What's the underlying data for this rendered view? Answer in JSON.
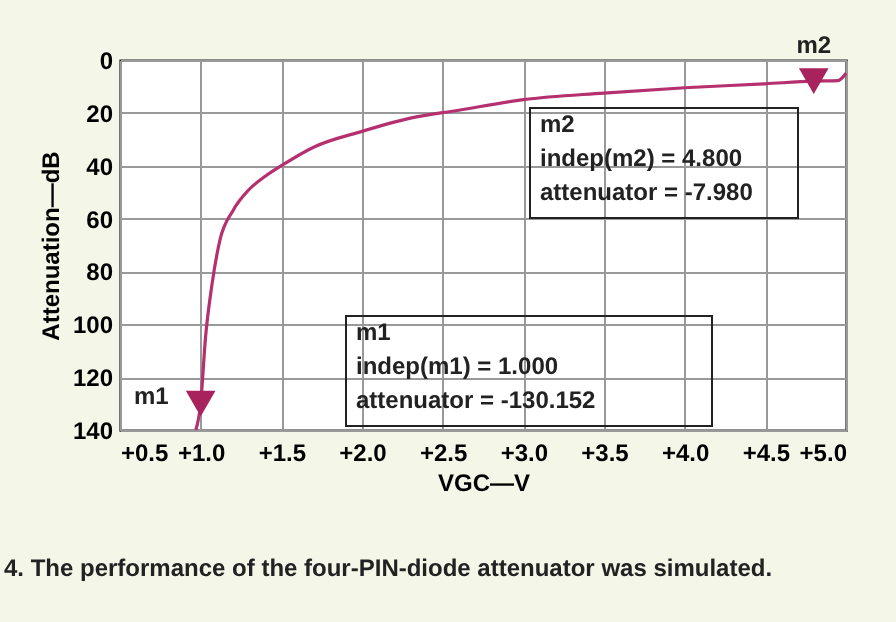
{
  "chart_data": {
    "type": "line",
    "xlabel": "VGC—V",
    "ylabel": "Attenuation—dB",
    "xlim": [
      0.5,
      5.0
    ],
    "ylim": [
      140,
      0
    ],
    "xticks": [
      {
        "value": 0.5,
        "label": "+0.5"
      },
      {
        "value": 1.0,
        "label": "+1.0"
      },
      {
        "value": 1.5,
        "label": "+1.5"
      },
      {
        "value": 2.0,
        "label": "+2.0"
      },
      {
        "value": 2.5,
        "label": "+2.5"
      },
      {
        "value": 3.0,
        "label": "+3.0"
      },
      {
        "value": 3.5,
        "label": "+3.5"
      },
      {
        "value": 4.0,
        "label": "+4.0"
      },
      {
        "value": 4.5,
        "label": "+4.5"
      },
      {
        "value": 5.0,
        "label": "+5.0"
      }
    ],
    "yticks": [
      0,
      20,
      40,
      60,
      80,
      100,
      120,
      140
    ],
    "grid": true,
    "series": [
      {
        "color": "#b4306e",
        "x": [
          0.97,
          1.0,
          1.03,
          1.07,
          1.12,
          1.2,
          1.3,
          1.4,
          1.5,
          1.7,
          2.0,
          2.3,
          2.6,
          3.0,
          3.5,
          4.0,
          4.5,
          4.8,
          4.95,
          5.0
        ],
        "values": [
          140,
          130,
          105,
          85,
          68,
          57,
          49,
          44,
          40,
          33,
          27,
          22,
          19,
          15,
          12.5,
          10.5,
          9,
          8,
          7.8,
          5
        ]
      },
      {
        "name": "m1",
        "type": "scatter",
        "marker": "triangle",
        "color": "#a8225e",
        "x": [
          1.0
        ],
        "values": [
          130
        ]
      },
      {
        "name": "m2",
        "type": "scatter",
        "marker": "triangle",
        "color": "#a8225e",
        "x": [
          4.8
        ],
        "values": [
          8
        ]
      }
    ],
    "annotations": [
      "m1\nindep(m1) = 1.000\nattenuator = -130.152",
      "m2\nindep(m2) = 4.800\nattenuator = -7.980",
      "4. The performance of the four-PIN-diode attenuator was simulated."
    ]
  }
}
